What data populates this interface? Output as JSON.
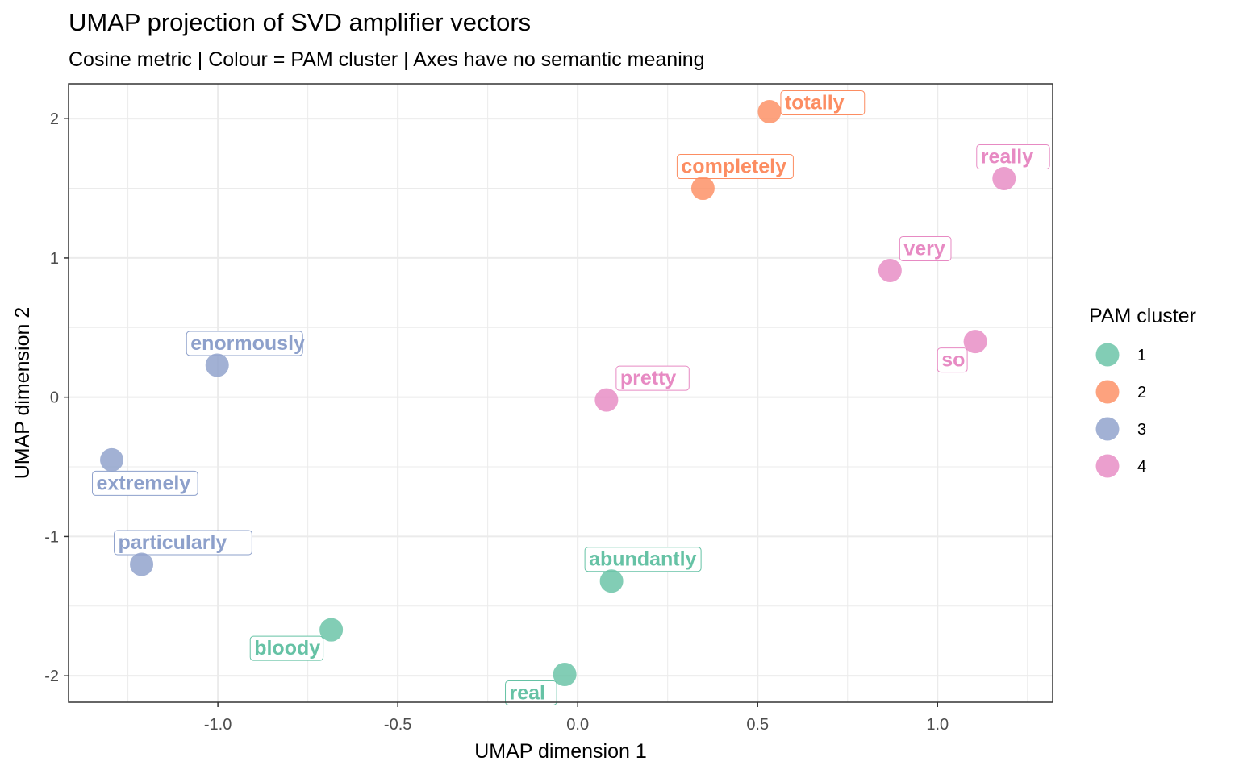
{
  "chart_data": {
    "type": "scatter",
    "title": "UMAP projection of SVD amplifier vectors",
    "subtitle": "Cosine metric | Colour = PAM cluster | Axes have no semantic meaning",
    "xlabel": "UMAP dimension 1",
    "ylabel": "UMAP dimension 2",
    "xlim": [
      -1.415,
      1.32
    ],
    "ylim": [
      -2.19,
      2.25
    ],
    "x_ticks": [
      -1.0,
      -0.5,
      0.0,
      0.5,
      1.0
    ],
    "x_tick_labels": [
      "-1.0",
      "-0.5",
      "0.0",
      "0.5",
      "1.0"
    ],
    "y_ticks": [
      -2,
      -1,
      0,
      1,
      2
    ],
    "y_tick_labels": [
      "-2",
      "-1",
      "0",
      "1",
      "2"
    ],
    "grid": true,
    "legend": {
      "title": "PAM cluster",
      "placement": "right",
      "entries": [
        {
          "label": "1",
          "color": "#66c2a5"
        },
        {
          "label": "2",
          "color": "#fc8d62"
        },
        {
          "label": "3",
          "color": "#8da0cb"
        },
        {
          "label": "4",
          "color": "#e78ac3"
        }
      ]
    },
    "points": [
      {
        "label": "totally",
        "x": 0.533,
        "y": 2.05,
        "cluster": "2",
        "label_pos": "right"
      },
      {
        "label": "completely",
        "x": 0.348,
        "y": 1.5,
        "cluster": "2",
        "label_pos": "above"
      },
      {
        "label": "really",
        "x": 1.185,
        "y": 1.57,
        "cluster": "4",
        "label_pos": "above"
      },
      {
        "label": "very",
        "x": 0.868,
        "y": 0.91,
        "cluster": "4",
        "label_pos": "above-right"
      },
      {
        "label": "so",
        "x": 1.105,
        "y": 0.4,
        "cluster": "4",
        "label_pos": "below-left"
      },
      {
        "label": "pretty",
        "x": 0.08,
        "y": -0.02,
        "cluster": "4",
        "label_pos": "above-right"
      },
      {
        "label": "enormously",
        "x": -1.002,
        "y": 0.23,
        "cluster": "3",
        "label_pos": "above"
      },
      {
        "label": "extremely",
        "x": -1.295,
        "y": -0.45,
        "cluster": "3",
        "label_pos": "below"
      },
      {
        "label": "particularly",
        "x": -1.212,
        "y": -1.2,
        "cluster": "3",
        "label_pos": "above"
      },
      {
        "label": "bloody",
        "x": -0.685,
        "y": -1.67,
        "cluster": "1",
        "label_pos": "below-left"
      },
      {
        "label": "abundantly",
        "x": 0.094,
        "y": -1.32,
        "cluster": "1",
        "label_pos": "above"
      },
      {
        "label": "real",
        "x": -0.036,
        "y": -1.99,
        "cluster": "1",
        "label_pos": "below-left"
      }
    ]
  }
}
